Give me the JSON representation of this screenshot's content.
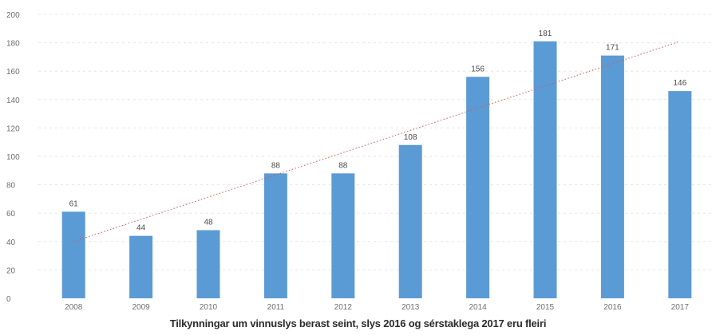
{
  "chart_data": {
    "type": "bar",
    "categories": [
      "2008",
      "2009",
      "2010",
      "2011",
      "2012",
      "2013",
      "2014",
      "2015",
      "2016",
      "2017"
    ],
    "values": [
      61,
      44,
      48,
      88,
      88,
      108,
      156,
      181,
      171,
      146
    ],
    "data_labels": [
      "61",
      "44",
      "48",
      "88",
      "88",
      "108",
      "156",
      "181",
      "171",
      "146"
    ],
    "y_ticks": [
      "0",
      "20",
      "40",
      "60",
      "80",
      "100",
      "120",
      "140",
      "160",
      "180",
      "200"
    ],
    "ylim": [
      0,
      200
    ],
    "grid": true,
    "legend": "none",
    "trendline": {
      "type": "linear",
      "start": 40,
      "end": 181,
      "color": "#d9534f"
    },
    "bar_color": "#5b9bd5",
    "caption": "Tilkynningar um vinnuslys berast seint, slys 2016 og sérstaklega 2017 eru fleiri"
  }
}
